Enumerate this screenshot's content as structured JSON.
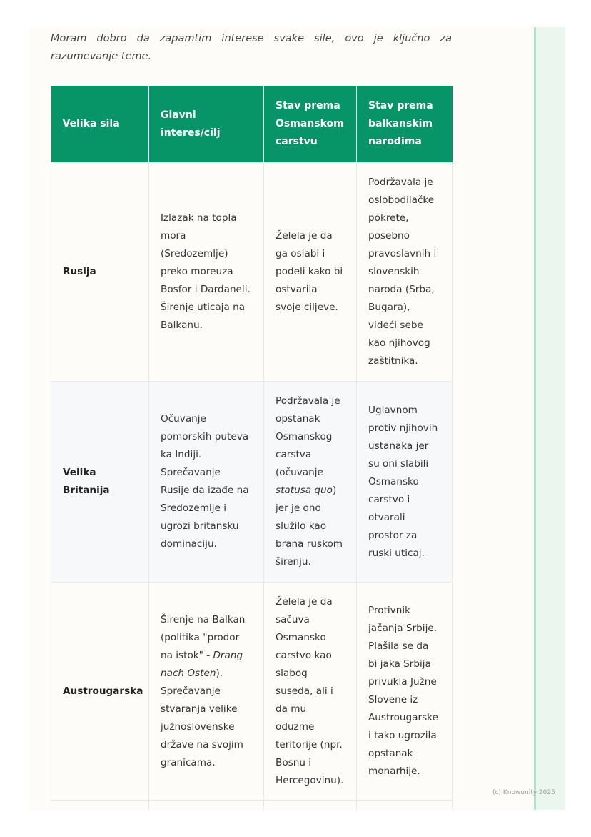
{
  "intro": "Moram dobro da zapamtim interese svake sile, ovo je ključno za razumevanje teme.",
  "table": {
    "headers": [
      "Velika sila",
      "Glavni interes/cilj",
      "Stav prema Osmanskom carstvu",
      "Stav prema balkanskim narodima"
    ],
    "rows": [
      [
        [
          {
            "t": "Rusija"
          }
        ],
        [
          {
            "t": "Izlazak na topla mora (Sredozemlje) preko moreuza Bosfor i Dardaneli. Širenje uticaja na Balkanu."
          }
        ],
        [
          {
            "t": "Želela je da ga oslabi i podeli kako bi ostvarila svoje ciljeve."
          }
        ],
        [
          {
            "t": "Podržavala je oslobodilačke pokrete, posebno pravoslavnih i slovenskih naroda (Srba, Bugara), videći sebe kao njihovog zaštitnika."
          }
        ]
      ],
      [
        [
          {
            "t": "Velika Britanija"
          }
        ],
        [
          {
            "t": "Očuvanje pomorskih puteva ka Indiji. Sprečavanje Rusije da izađe na Sredozemlje i ugrozi britansku dominaciju."
          }
        ],
        [
          {
            "t": "Podržavala je opstanak Osmanskog carstva (očuvanje "
          },
          {
            "t": "statusa quo",
            "i": true
          },
          {
            "t": ") jer je ono služilo kao brana ruskom širenju."
          }
        ],
        [
          {
            "t": "Uglavnom protiv njihovih ustanaka jer su oni slabili Osmansko carstvo i otvarali prostor za ruski uticaj."
          }
        ]
      ],
      [
        [
          {
            "t": "Austrougarska"
          }
        ],
        [
          {
            "t": "Širenje na Balkan (politika \"prodor na istok\" - "
          },
          {
            "t": "Drang nach Osten",
            "i": true
          },
          {
            "t": "). Sprečavanje stvaranja velike južnoslovenske države na svojim granicama."
          }
        ],
        [
          {
            "t": "Želela je da sačuva Osmansko carstvo kao slabog suseda, ali i da mu oduzme teritorije (npr. Bosnu i Hercegovinu)."
          }
        ],
        [
          {
            "t": "Protivnik jačanja Srbije. Plašila se da bi jaka Srbija privukla Južne Slovene iz Austrougarske i tako ugrozila opstanak monarhije."
          }
        ]
      ]
    ]
  },
  "footer": "(c) Knowunity 2025"
}
